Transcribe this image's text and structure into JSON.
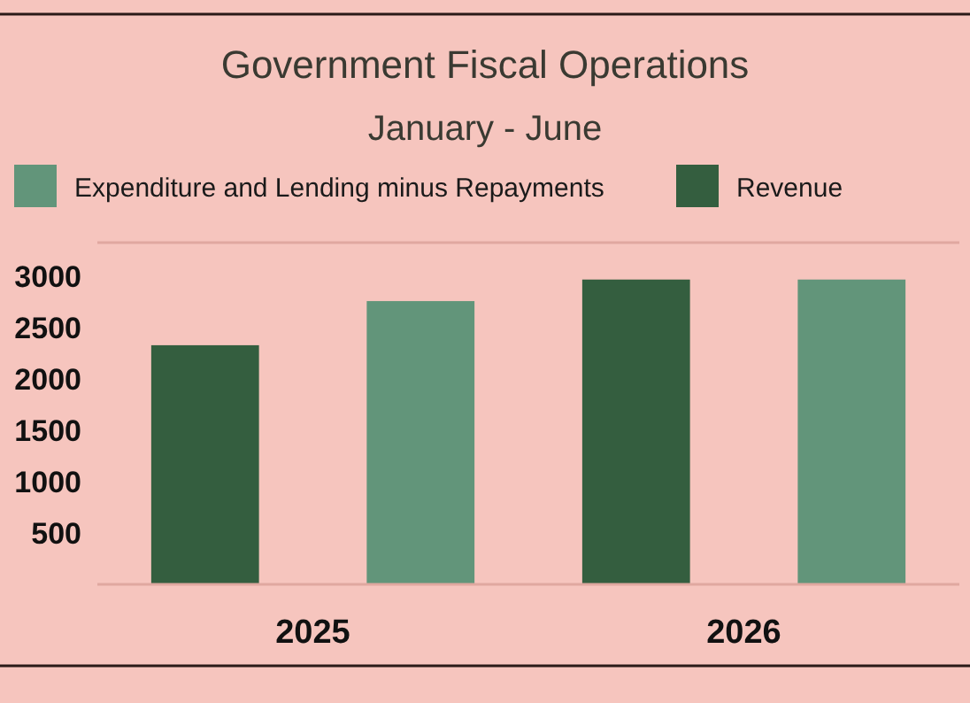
{
  "chart_data": {
    "type": "bar",
    "title": "Government Fiscal Operations",
    "subtitle": "January - June",
    "categories": [
      "2025",
      "2026"
    ],
    "series": [
      {
        "name": "Revenue",
        "color": "#345e3f",
        "values": [
          2330,
          2970
        ]
      },
      {
        "name": "Expenditure and Lending minus Repayments",
        "color": "#62957a",
        "values": [
          2760,
          2970
        ]
      }
    ],
    "ylim": [
      0,
      3330
    ],
    "yticks": [
      500,
      1000,
      1500,
      2000,
      2500,
      3000
    ],
    "grid": false,
    "legend": "top"
  }
}
